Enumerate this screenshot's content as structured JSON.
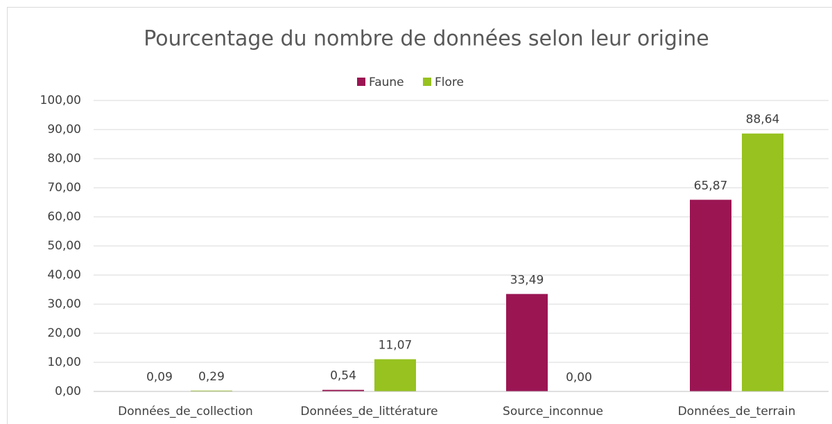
{
  "chart_data": {
    "type": "bar",
    "title": "Pourcentage du nombre de données selon leur origine",
    "categories": [
      "Données_de_collection",
      "Données_de_littérature",
      "Source_inconnue",
      "Données_de_terrain"
    ],
    "series": [
      {
        "name": "Faune",
        "color": "#9b1553",
        "values": [
          0.09,
          0.54,
          33.49,
          65.87
        ],
        "value_labels": [
          "0,09",
          "0,54",
          "33,49",
          "65,87"
        ]
      },
      {
        "name": "Flore",
        "color": "#97c21f",
        "values": [
          0.29,
          11.07,
          0.0,
          88.64
        ],
        "value_labels": [
          "0,29",
          "11,07",
          "0,00",
          "88,64"
        ]
      }
    ],
    "ylim": [
      0,
      100
    ],
    "yticks": [
      {
        "value": 0,
        "label": "0,00"
      },
      {
        "value": 10,
        "label": "10,00"
      },
      {
        "value": 20,
        "label": "20,00"
      },
      {
        "value": 30,
        "label": "30,00"
      },
      {
        "value": 40,
        "label": "40,00"
      },
      {
        "value": 50,
        "label": "50,00"
      },
      {
        "value": 60,
        "label": "60,00"
      },
      {
        "value": 70,
        "label": "70,00"
      },
      {
        "value": 80,
        "label": "80,00"
      },
      {
        "value": 90,
        "label": "90,00"
      },
      {
        "value": 100,
        "label": "100,00"
      }
    ],
    "grid": true,
    "legend": "top"
  }
}
